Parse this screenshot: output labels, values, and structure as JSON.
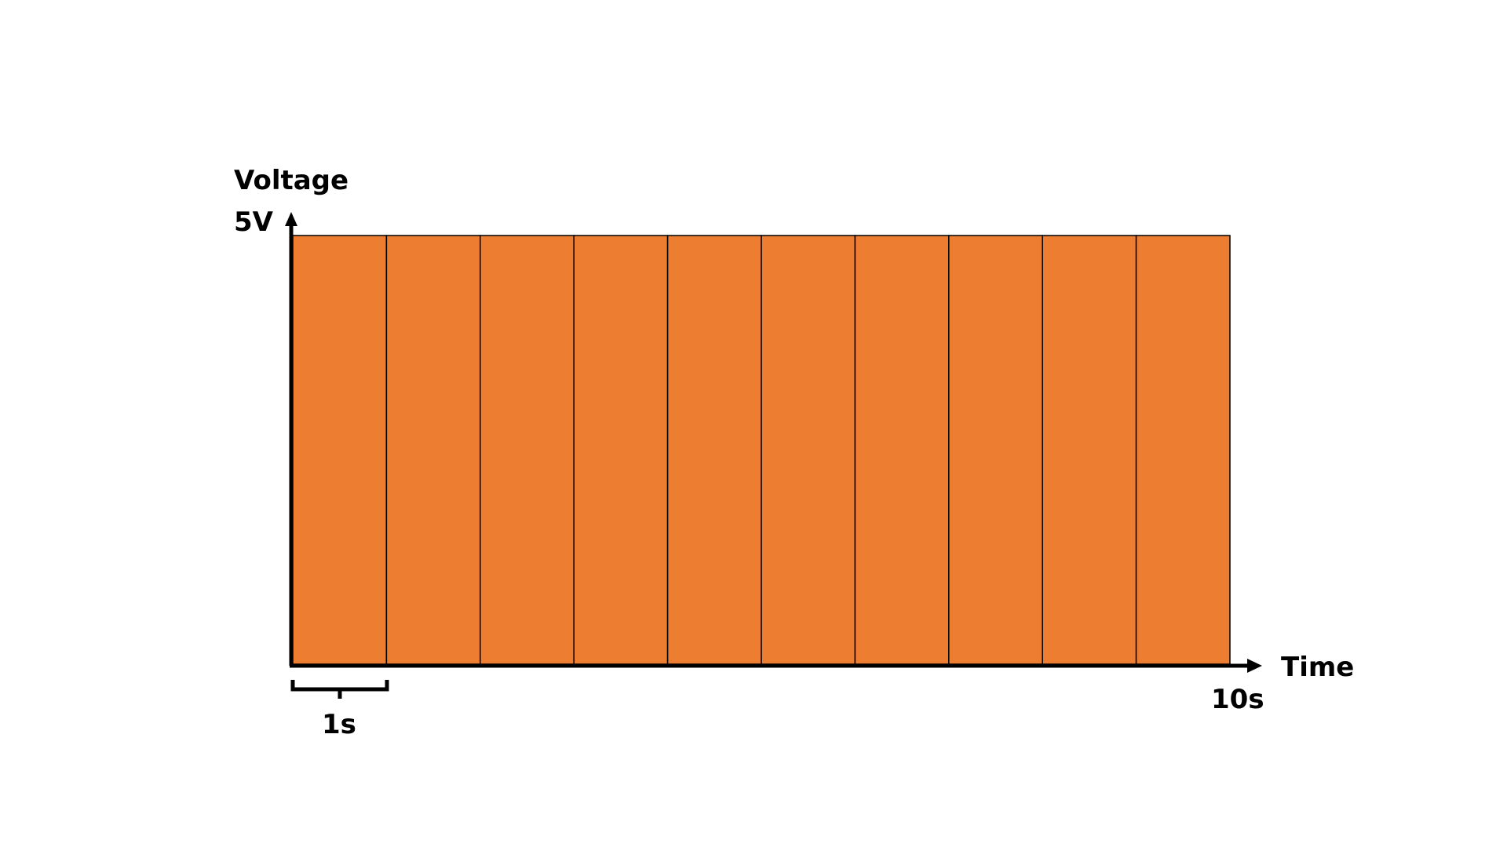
{
  "labels": {
    "y_axis": "Voltage",
    "y_level": "5V",
    "x_axis": "Time",
    "x_end": "10s",
    "interval": "1s"
  },
  "diagram": {
    "segments": 10,
    "segment_duration_s": 1,
    "total_duration_s": 10,
    "level_v": 5
  },
  "colors": {
    "fill": "#ED7D31",
    "stroke": "#000000"
  }
}
